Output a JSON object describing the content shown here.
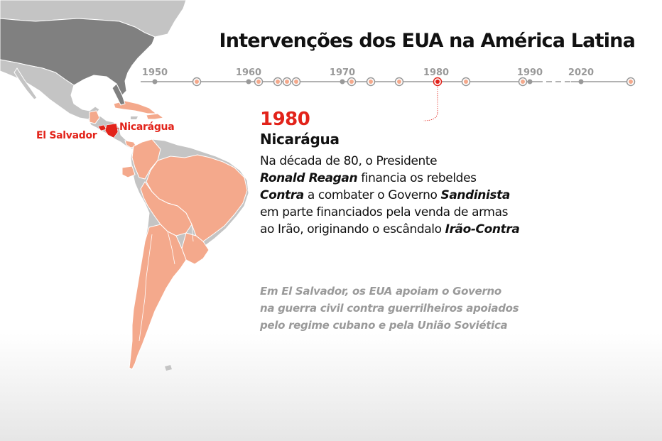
{
  "title": "Intervenções dos EUA na América Latina",
  "timeline": {
    "year_labels": [
      "1950",
      "1960",
      "1970",
      "1980",
      "1990",
      "2020"
    ],
    "selected_year": "1980"
  },
  "map": {
    "labels": {
      "el_salvador": "El Salvador",
      "nicaragua": "Nicarágua"
    }
  },
  "info": {
    "year": "1980",
    "country": "Nicarágua",
    "lines": [
      [
        {
          "t": "Na década de 80, o Presidente"
        }
      ],
      [
        {
          "t": "Ronald Reagan",
          "b": true
        },
        {
          "t": " financia os rebeldes"
        }
      ],
      [
        {
          "t": "Contra",
          "b": true
        },
        {
          "t": " a combater o Governo "
        },
        {
          "t": "Sandinista",
          "b": true
        }
      ],
      [
        {
          "t": "em parte financiados pela venda de armas"
        }
      ],
      [
        {
          "t": "ao Irão, originando o escândalo "
        },
        {
          "t": "Irão-Contra",
          "b": true
        }
      ]
    ],
    "note_lines": [
      "Em El Salvador, os EUA apoiam o Governo",
      "na guerra civil contra guerrilheiros apoiados",
      "pelo regime cubano e pela União Soviética"
    ]
  },
  "colors": {
    "accent": "#e2231a",
    "intervention_fill": "#f4a98c",
    "land_dark": "#808080",
    "land_light": "#c4c4c4",
    "timeline": "#999999"
  }
}
